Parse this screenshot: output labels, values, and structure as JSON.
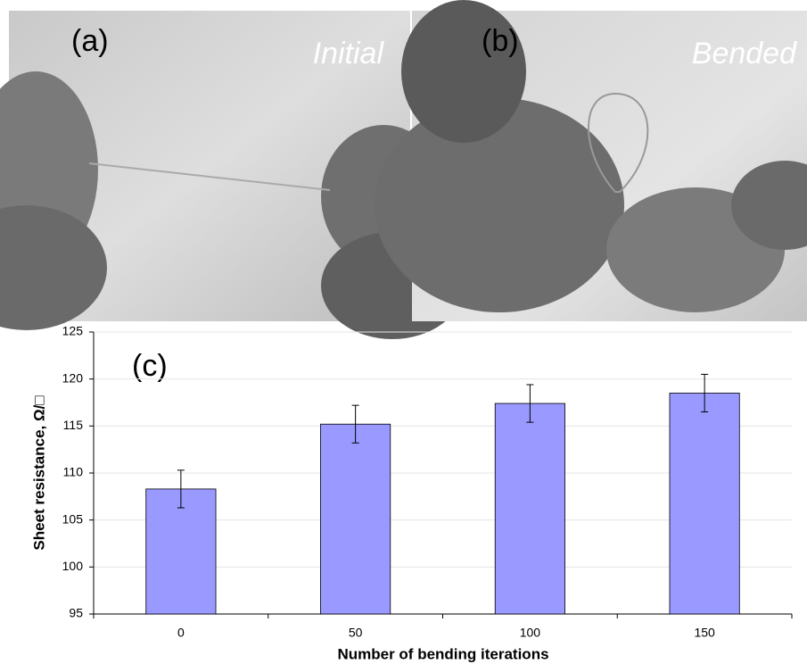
{
  "panels": [
    {
      "label": "(a)",
      "caption": "Initial"
    },
    {
      "label": "(b)",
      "caption": "Bended"
    }
  ],
  "chart_data": {
    "type": "bar",
    "annotation": "(c)",
    "x_label": "Number of bending iterations",
    "y_label": "Sheet resistance, Ω/□",
    "categories": [
      "0",
      "50",
      "100",
      "150"
    ],
    "values": [
      108.3,
      115.2,
      117.4,
      118.5
    ],
    "errors": [
      2,
      2,
      2,
      2
    ],
    "color": "#9999ff",
    "ylim": [
      95,
      125
    ],
    "yticks": [
      95,
      100,
      105,
      110,
      115,
      120,
      125
    ],
    "grid": true
  }
}
